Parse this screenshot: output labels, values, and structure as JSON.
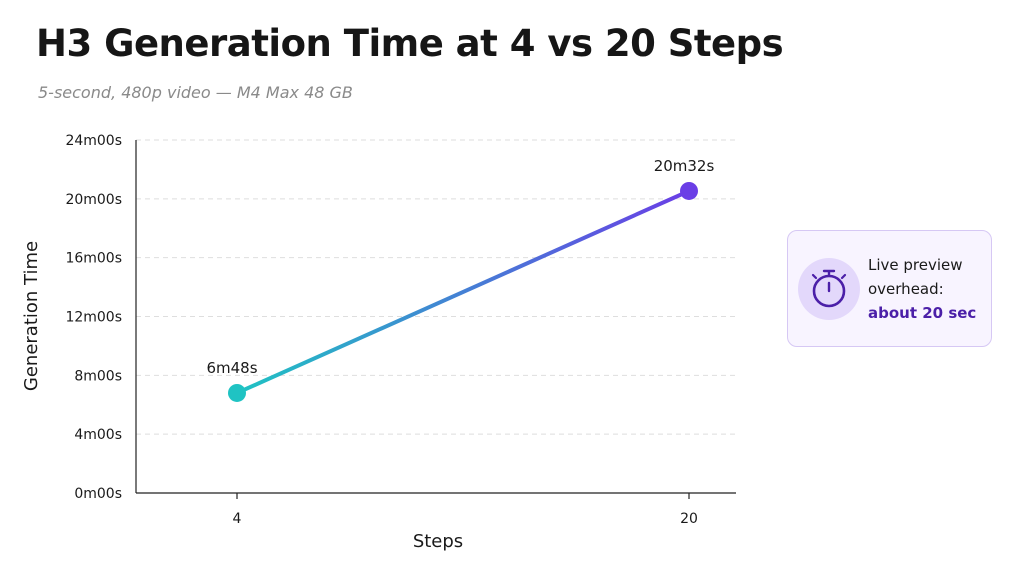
{
  "title": "H3 Generation Time at 4 vs 20 Steps",
  "subtitle": "5-second, 480p video — M4 Max 48 GB",
  "chart_data": {
    "type": "line",
    "title": "H3 Generation Time at 4 vs 20 Steps",
    "subtitle": "5-second, 480p video — M4 Max 48 GB",
    "xlabel": "Steps",
    "ylabel": "Generation Time",
    "x": [
      4,
      20
    ],
    "x_tick_labels": [
      "4",
      "20"
    ],
    "y_unit": "seconds",
    "ylim": [
      0,
      1440
    ],
    "y_ticks": [
      0,
      240,
      480,
      720,
      960,
      1200,
      1440
    ],
    "y_tick_labels": [
      "0m00s",
      "4m00s",
      "8m00s",
      "12m00s",
      "16m00s",
      "20m00s",
      "24m00s"
    ],
    "grid": true,
    "series": [
      {
        "values": [
          408,
          1232
        ],
        "data_labels": [
          "6m48s",
          "20m32s"
        ]
      }
    ],
    "colors": {
      "start": "#1fc3c3",
      "end": "#6a3ee6"
    }
  },
  "callout": {
    "line1": "Live preview",
    "line2": "overhead:",
    "highlight": "about 20 sec",
    "icon": "stopwatch-icon",
    "accent": "#4b1fa8"
  }
}
